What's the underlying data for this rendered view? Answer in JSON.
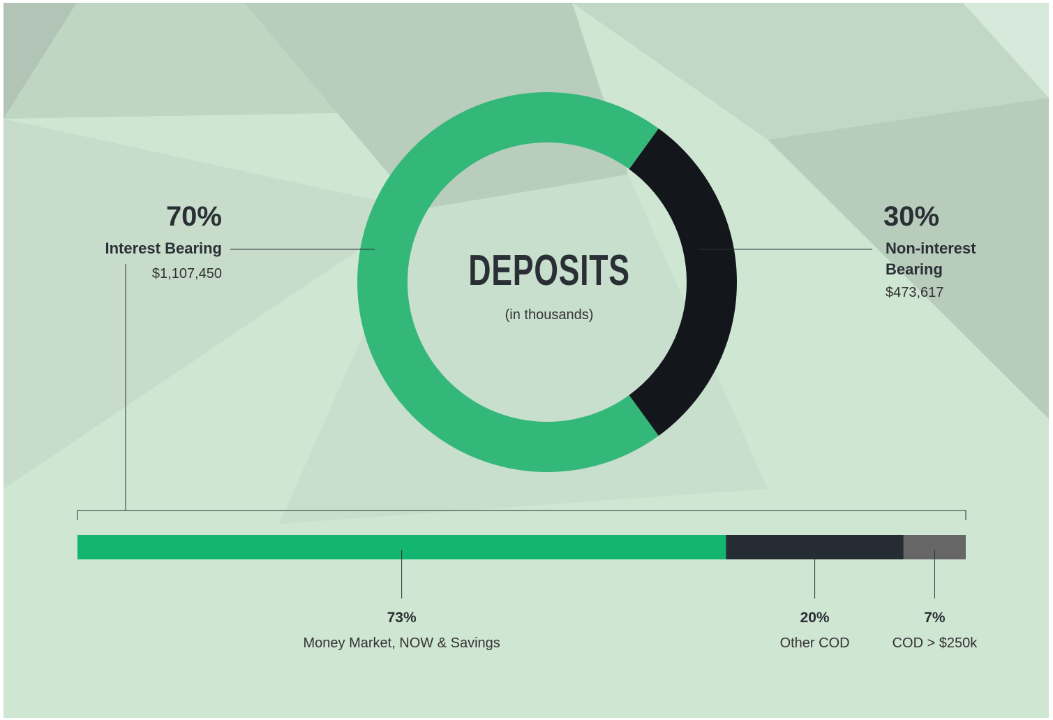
{
  "chart_data": [
    {
      "type": "donut",
      "title": "DEPOSITS",
      "subtitle": "(in thousands)",
      "categories": [
        "Interest Bearing",
        "Non-interest Bearing"
      ],
      "values": [
        70,
        30
      ],
      "value_labels": [
        "70%",
        "30%"
      ],
      "amounts": [
        "$1,107,450",
        "$473,617"
      ],
      "colors": [
        "#34b87a",
        "#13171c"
      ]
    },
    {
      "type": "stacked_bar",
      "categories": [
        "Money Market, NOW & Savings",
        "Other COD",
        "COD > $250k"
      ],
      "values": [
        73,
        20,
        7
      ],
      "value_labels": [
        "73%",
        "20%",
        "7%"
      ],
      "colors": [
        "#13b56f",
        "#262c33",
        "#666666"
      ]
    }
  ]
}
